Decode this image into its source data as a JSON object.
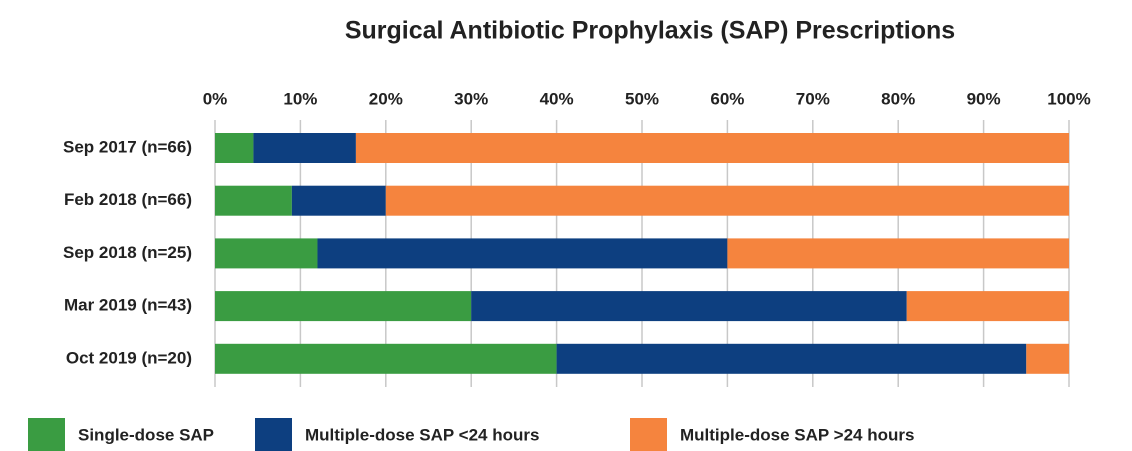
{
  "chart_data": {
    "type": "stacked_barh",
    "title": "Surgical Antibiotic Prophylaxis (SAP) Prescriptions",
    "categories": [
      "Sep 2017 (n=66)",
      "Feb 2018 (n=66)",
      "Sep 2018 (n=25)",
      "Mar 2019 (n=43)",
      "Oct 2019 (n=20)"
    ],
    "series": [
      {
        "name": "Single-dose SAP",
        "color": "#3a9c42",
        "values": [
          4.5,
          9,
          12,
          30,
          40
        ]
      },
      {
        "name": "Multiple-dose SAP <24 hours",
        "color": "#0d3f80",
        "values": [
          12,
          11,
          48,
          51,
          55
        ]
      },
      {
        "name": "Multiple-dose SAP >24 hours",
        "color": "#f5843e",
        "values": [
          83.5,
          80,
          40,
          19,
          5
        ]
      }
    ],
    "xlim": [
      0,
      100
    ],
    "xticks": [
      {
        "value": 0,
        "label": "0%"
      },
      {
        "value": 10,
        "label": "10%"
      },
      {
        "value": 20,
        "label": "20%"
      },
      {
        "value": 30,
        "label": "30%"
      },
      {
        "value": 40,
        "label": "40%"
      },
      {
        "value": 50,
        "label": "50%"
      },
      {
        "value": 60,
        "label": "60%"
      },
      {
        "value": 70,
        "label": "70%"
      },
      {
        "value": 80,
        "label": "80%"
      },
      {
        "value": 90,
        "label": "90%"
      },
      {
        "value": 100,
        "label": "100%"
      }
    ],
    "grid": true,
    "legend": "bottom"
  }
}
